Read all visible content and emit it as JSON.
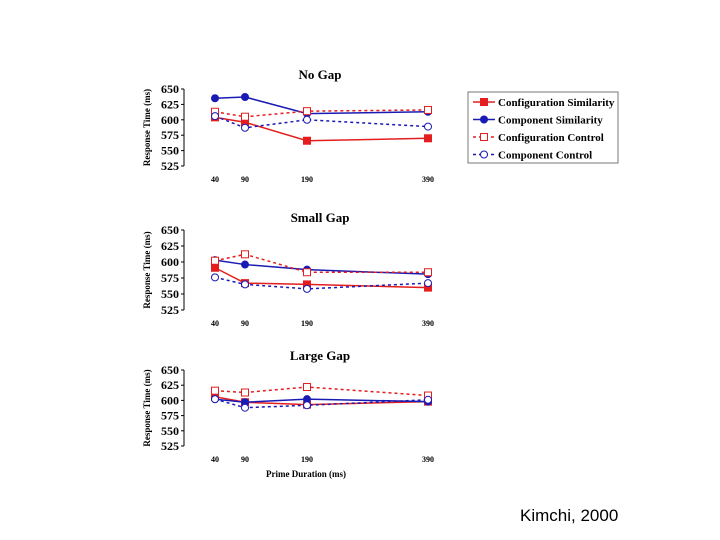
{
  "caption": "Kimchi, 2000",
  "colors": {
    "configuration": "#e41e1e",
    "component": "#1a1ab4"
  },
  "legend": [
    {
      "label": "Configuration Similarity",
      "series": "cs"
    },
    {
      "label": "Component Similarity",
      "series": "ms"
    },
    {
      "label": "Configuration Control",
      "series": "cc"
    },
    {
      "label": "Component Control",
      "series": "mc"
    }
  ],
  "chart_data": [
    {
      "type": "line",
      "title": "No Gap",
      "xlabel": "",
      "ylabel": "Response Time (ms)",
      "x": [
        40,
        90,
        190,
        390
      ],
      "x_tick_labels": [
        "40",
        "90",
        "190",
        "390"
      ],
      "y_ticks": [
        650,
        625,
        600,
        575,
        550,
        525
      ],
      "y_tick_labels": [
        "650",
        "625",
        "600",
        "575",
        "550",
        "525"
      ],
      "ylim": [
        525,
        650
      ],
      "series": [
        {
          "name": "Configuration Similarity",
          "key": "cs",
          "values": [
            604,
            596,
            566,
            570
          ]
        },
        {
          "name": "Component Similarity",
          "key": "ms",
          "values": [
            635,
            637,
            610,
            613
          ]
        },
        {
          "name": "Configuration Control",
          "key": "cc",
          "values": [
            613,
            605,
            614,
            616
          ]
        },
        {
          "name": "Component Control",
          "key": "mc",
          "values": [
            606,
            587,
            600,
            589
          ]
        }
      ]
    },
    {
      "type": "line",
      "title": "Small Gap",
      "xlabel": "",
      "ylabel": "Response Time (ms)",
      "x": [
        40,
        90,
        190,
        390
      ],
      "x_tick_labels": [
        "40",
        "90",
        "190",
        "390"
      ],
      "y_ticks": [
        650,
        625,
        600,
        575,
        550,
        525
      ],
      "y_tick_labels": [
        "650",
        "625",
        "600",
        "575",
        "550",
        "525"
      ],
      "ylim": [
        525,
        650
      ],
      "series": [
        {
          "name": "Configuration Similarity",
          "key": "cs",
          "values": [
            591,
            567,
            565,
            560
          ]
        },
        {
          "name": "Component Similarity",
          "key": "ms",
          "values": [
            603,
            596,
            588,
            581
          ]
        },
        {
          "name": "Configuration Control",
          "key": "cc",
          "values": [
            602,
            612,
            584,
            584
          ]
        },
        {
          "name": "Component Control",
          "key": "mc",
          "values": [
            576,
            565,
            558,
            567
          ]
        }
      ]
    },
    {
      "type": "line",
      "title": "Large Gap",
      "xlabel": "Prime Duration (ms)",
      "ylabel": "Response Time (ms)",
      "x": [
        40,
        90,
        190,
        390
      ],
      "x_tick_labels": [
        "40",
        "90",
        "190",
        "390"
      ],
      "y_ticks": [
        650,
        625,
        600,
        575,
        550,
        525
      ],
      "y_tick_labels": [
        "650",
        "625",
        "600",
        "575",
        "550",
        "525"
      ],
      "ylim": [
        525,
        650
      ],
      "series": [
        {
          "name": "Configuration Similarity",
          "key": "cs",
          "values": [
            606,
            597,
            593,
            598
          ]
        },
        {
          "name": "Component Similarity",
          "key": "ms",
          "values": [
            602,
            597,
            602,
            598
          ]
        },
        {
          "name": "Configuration Control",
          "key": "cc",
          "values": [
            616,
            613,
            622,
            608
          ]
        },
        {
          "name": "Component Control",
          "key": "mc",
          "values": [
            602,
            588,
            592,
            601
          ]
        }
      ]
    }
  ]
}
